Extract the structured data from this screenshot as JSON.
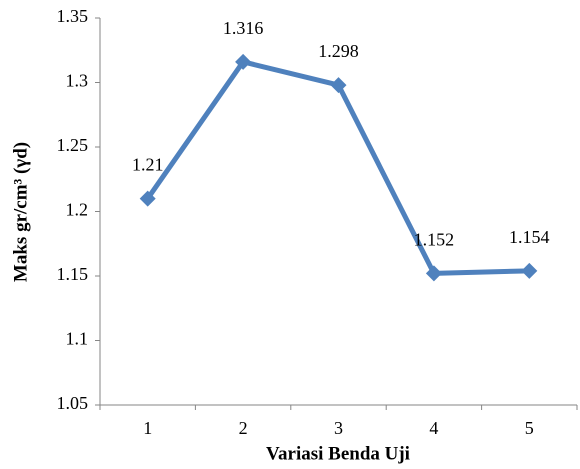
{
  "chart_data": {
    "type": "line",
    "x_label": "Variasi Benda Uji",
    "y_label": "Maks gr/cm³ (γd)",
    "categories": [
      "1",
      "2",
      "3",
      "4",
      "5"
    ],
    "values": [
      1.21,
      1.316,
      1.298,
      1.152,
      1.154
    ],
    "color": "#4f81bd",
    "ylim": [
      1.05,
      1.35
    ],
    "yticks": [
      1.05,
      1.1,
      1.15,
      1.2,
      1.25,
      1.3,
      1.35
    ],
    "grid": false
  }
}
